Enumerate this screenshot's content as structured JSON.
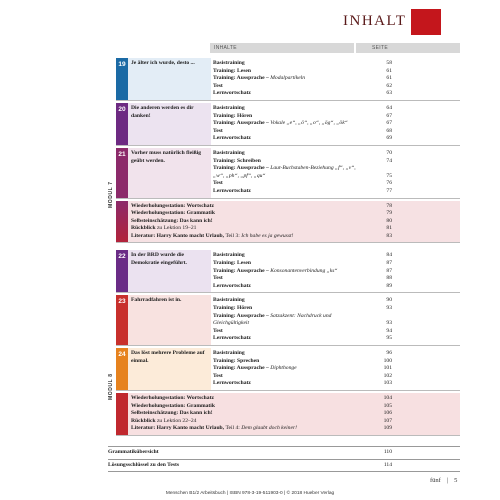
{
  "header": {
    "title": "INHALT"
  },
  "table": {
    "header": [
      "INHALTE",
      "SEITE"
    ],
    "modules": [
      {
        "label": "MODUL 7",
        "color": "#8c2a6a",
        "lessons": [
          {
            "number": "19",
            "title": "Je älter ich wurde, desto ...",
            "color": "#1b6aa5",
            "tint": "#e3edf6",
            "items": [
              {
                "bold": "Basistraining",
                "page": 58
              },
              {
                "bold": "Training: Lesen",
                "page": 61
              },
              {
                "bold": "Training: Aussprache –",
                "italic": "Modalpartikeln",
                "page": 61
              },
              {
                "bold": "Test",
                "page": 62
              },
              {
                "bold": "Lernwortschatz",
                "page": 63
              }
            ]
          },
          {
            "number": "20",
            "title": "Die anderen werden es dir danken!",
            "color": "#6d2a82",
            "tint": "#ece3f0",
            "items": [
              {
                "bold": "Basistraining",
                "page": 64
              },
              {
                "bold": "Training: Hören",
                "page": 67
              },
              {
                "bold": "Training: Aussprache –",
                "italic": "Vokale „e“, „ö“, „o“, „ög“, „ök“",
                "page": 67
              },
              {
                "bold": "Test",
                "page": 68
              },
              {
                "bold": "Lernwortschatz",
                "page": 69
              }
            ]
          },
          {
            "number": "21",
            "title": "Vorher muss natürlich fleißig geübt werden.",
            "color": "#8c2a6a",
            "tint": "#f1e3ec",
            "items": [
              {
                "bold": "Basistraining",
                "page": 70
              },
              {
                "bold": "Training: Schreiben",
                "page": 74
              },
              {
                "bold": "Training: Aussprache –",
                "italic": "Laut-Buchstaben-Beziehung „f“, „v“, „w“, „ph“, „pf“, „qu“",
                "page": 75
              },
              {
                "bold": "Test",
                "page": 76
              },
              {
                "bold": "Lernwortschatz",
                "page": 77
              }
            ]
          }
        ],
        "review": {
          "color": "#b2233a",
          "tint": "#f6e1e3",
          "items": [
            {
              "bold": "Wiederholungsstation: Wortschatz",
              "page": 78
            },
            {
              "bold": "Wiederholungsstation: Grammatik",
              "page": 79
            },
            {
              "bold": "Selbsteinschätzung: Das kann ich!",
              "page": 80
            },
            {
              "bold": "Rückblick",
              "plain": "zu Lektion 19–21",
              "page": 81
            },
            {
              "bold": "Literatur: Harry Kanto macht Urlaub,",
              "plain": "Teil 3:",
              "italic": "Ich habe es ja gewusst!",
              "page": 83
            }
          ]
        }
      },
      {
        "label": "MODUL 8",
        "color": "#c0282e",
        "lessons": [
          {
            "number": "22",
            "title": "In der BRD wurde die Demokratie eingeführt.",
            "color": "#6a2c86",
            "tint": "#ebe2f0",
            "items": [
              {
                "bold": "Basistraining",
                "page": 84
              },
              {
                "bold": "Training: Lesen",
                "page": 87
              },
              {
                "bold": "Training: Aussprache –",
                "italic": "Konsonantenverbindung „ks“",
                "page": 87
              },
              {
                "bold": "Test",
                "page": 88
              },
              {
                "bold": "Lernwortschatz",
                "page": 89
              }
            ]
          },
          {
            "number": "23",
            "title": "Fahrradfahren ist in.",
            "color": "#c8302c",
            "tint": "#f8e2e0",
            "items": [
              {
                "bold": "Basistraining",
                "page": 90
              },
              {
                "bold": "Training: Hören",
                "page": 93
              },
              {
                "bold": "Training: Aussprache –",
                "italic": "Satzakzent: Nachdruck und Gleichgültigkeit",
                "page": 93
              },
              {
                "bold": "Test",
                "page": 94
              },
              {
                "bold": "Lernwortschatz",
                "page": 95
              }
            ]
          },
          {
            "number": "24",
            "title": "Das löst mehrere Probleme auf einmal.",
            "color": "#e6821e",
            "tint": "#fcebd9",
            "items": [
              {
                "bold": "Basistraining",
                "page": 96
              },
              {
                "bold": "Training: Sprechen",
                "page": 100
              },
              {
                "bold": "Training: Aussprache –",
                "italic": "Diphthonge",
                "page": 101
              },
              {
                "bold": "Test",
                "page": 102
              },
              {
                "bold": "Lernwortschatz",
                "page": 103
              }
            ]
          }
        ],
        "review": {
          "color": "#c0282e",
          "tint": "#f7e0e1",
          "items": [
            {
              "bold": "Wiederholungsstation: Wortschatz",
              "page": 104
            },
            {
              "bold": "Wiederholungsstation: Grammatik",
              "page": 105
            },
            {
              "bold": "Selbsteinschätzung: Das kann ich!",
              "page": 106
            },
            {
              "bold": "Rückblick",
              "plain": "zu Lektion 22–24",
              "page": 107
            },
            {
              "bold": "Literatur: Harry Kanto macht Urlaub,",
              "plain": "Teil 4:",
              "italic": "Dem glaubt doch keiner!",
              "page": 109
            }
          ]
        }
      }
    ],
    "extras": [
      {
        "title": "Grammatikübersicht",
        "page": 110
      },
      {
        "title": "Lösungsschlüssel zu den Tests",
        "page": 114
      }
    ]
  },
  "footer": {
    "folio": [
      "fünf",
      "|",
      "5"
    ],
    "imprint": "Menschen B1/2 Arbeitsbuch | ISBN 978-3-19-511903-0 | © 2018 Hueber Verlag"
  }
}
